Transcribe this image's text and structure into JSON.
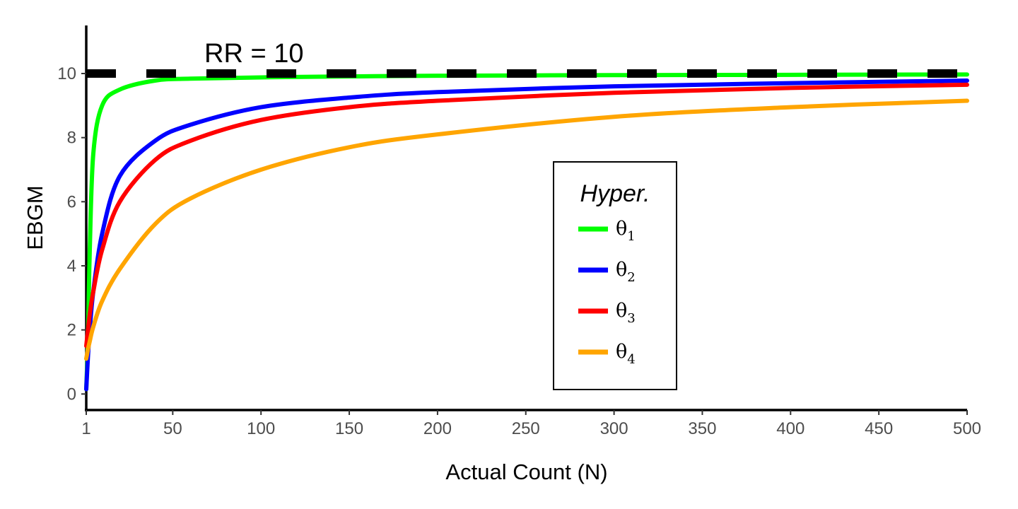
{
  "chart_data": {
    "type": "line",
    "xlabel": "Actual Count (N)",
    "ylabel": "EBGM",
    "xlim": [
      1,
      500
    ],
    "ylim": [
      -0.5,
      11.5
    ],
    "x_ticks": [
      1,
      50,
      100,
      150,
      200,
      250,
      300,
      350,
      400,
      450,
      500
    ],
    "y_ticks": [
      0,
      2,
      4,
      6,
      8,
      10
    ],
    "grid": false,
    "reference_line": {
      "y": 10,
      "style": "dashed",
      "color": "#000000",
      "label": "RR = 10"
    },
    "legend": {
      "title": "Hyper.",
      "placement": "center-right",
      "entries": [
        {
          "symbol": "θ",
          "subscript": "1",
          "color": "#00ff00"
        },
        {
          "symbol": "θ",
          "subscript": "2",
          "color": "#0000ff"
        },
        {
          "symbol": "θ",
          "subscript": "3",
          "color": "#ff0000"
        },
        {
          "symbol": "θ",
          "subscript": "4",
          "color": "#ffa500"
        }
      ]
    },
    "series": [
      {
        "color": "#00ff00",
        "x": [
          1,
          2,
          3,
          5,
          10,
          20,
          40,
          60,
          100,
          150,
          200,
          300,
          400,
          500
        ],
        "y": [
          0.15,
          1.8,
          4.5,
          7.5,
          9.0,
          9.5,
          9.78,
          9.84,
          9.88,
          9.91,
          9.93,
          9.95,
          9.96,
          9.97
        ]
      },
      {
        "color": "#0000ff",
        "x": [
          1,
          2,
          3,
          5,
          10,
          20,
          40,
          60,
          100,
          150,
          200,
          300,
          400,
          500
        ],
        "y": [
          0.15,
          1.2,
          2.0,
          3.2,
          5.0,
          6.8,
          7.9,
          8.4,
          8.95,
          9.25,
          9.42,
          9.6,
          9.7,
          9.78
        ]
      },
      {
        "color": "#ff0000",
        "x": [
          1,
          2,
          3,
          5,
          10,
          20,
          40,
          60,
          100,
          150,
          200,
          300,
          400,
          500
        ],
        "y": [
          1.5,
          2.0,
          2.5,
          3.2,
          4.5,
          6.0,
          7.3,
          7.9,
          8.55,
          8.95,
          9.15,
          9.4,
          9.55,
          9.65
        ]
      },
      {
        "color": "#ffa500",
        "x": [
          1,
          2,
          3,
          5,
          10,
          20,
          40,
          60,
          100,
          150,
          200,
          300,
          400,
          500
        ],
        "y": [
          1.1,
          1.4,
          1.65,
          2.1,
          2.9,
          3.9,
          5.3,
          6.1,
          7.0,
          7.7,
          8.1,
          8.65,
          8.95,
          9.15
        ]
      }
    ]
  }
}
